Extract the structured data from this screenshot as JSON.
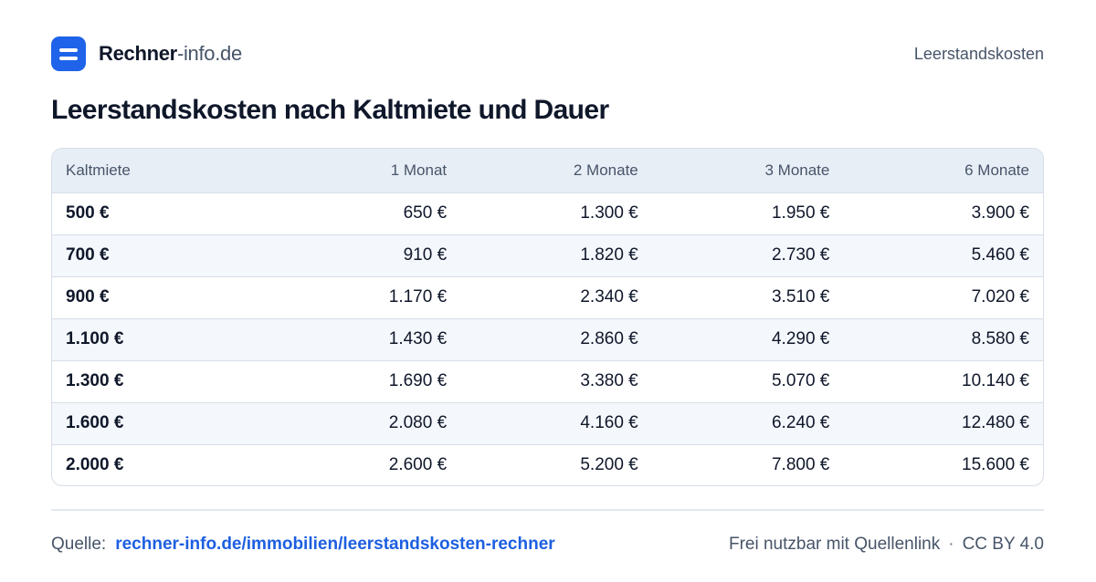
{
  "header": {
    "brand_strong": "Rechner",
    "brand_light": "-info.de",
    "right_label": "Leerstandskosten"
  },
  "title": "Leerstandskosten nach Kaltmiete und Dauer",
  "table": {
    "columns": [
      "Kaltmiete",
      "1 Monat",
      "2 Monate",
      "3 Monate",
      "6 Monate"
    ],
    "rows": [
      [
        "500 €",
        "650 €",
        "1.300 €",
        "1.950 €",
        "3.900 €"
      ],
      [
        "700 €",
        "910 €",
        "1.820 €",
        "2.730 €",
        "5.460 €"
      ],
      [
        "900 €",
        "1.170 €",
        "2.340 €",
        "3.510 €",
        "7.020 €"
      ],
      [
        "1.100 €",
        "1.430 €",
        "2.860 €",
        "4.290 €",
        "8.580 €"
      ],
      [
        "1.300 €",
        "1.690 €",
        "3.380 €",
        "5.070 €",
        "10.140 €"
      ],
      [
        "1.600 €",
        "2.080 €",
        "4.160 €",
        "6.240 €",
        "12.480 €"
      ],
      [
        "2.000 €",
        "2.600 €",
        "5.200 €",
        "7.800 €",
        "15.600 €"
      ]
    ]
  },
  "footer": {
    "source_label": "Quelle:",
    "source_link": "rechner-info.de/immobilien/leerstandskosten-rechner",
    "license_text": "Frei nutzbar mit Quellenlink",
    "separator": "·",
    "license_name": "CC BY 4.0"
  },
  "colors": {
    "accent": "#1e63e9",
    "link": "#1d5fe0",
    "header_bg": "#e8eef6",
    "stripe_bg": "#f4f7fb"
  },
  "icons": {
    "logo": "menu-icon"
  }
}
